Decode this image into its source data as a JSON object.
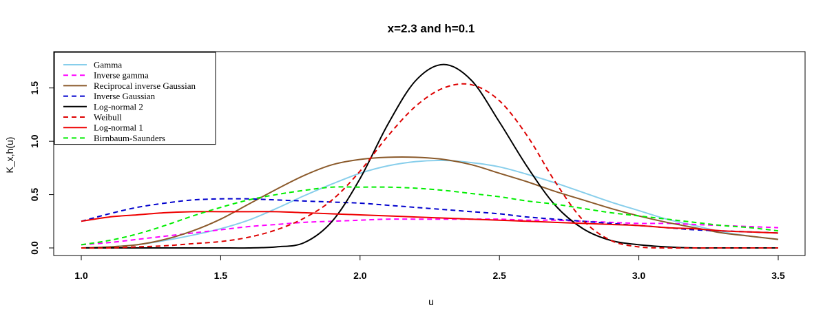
{
  "chart_data": {
    "type": "line",
    "title": "x=2.3 and h=0.1",
    "xlabel": "u",
    "ylabel": "K_x,h(u)",
    "xlim": [
      1.0,
      3.5
    ],
    "ylim": [
      0.0,
      1.75
    ],
    "xticks": [
      1.0,
      1.5,
      2.0,
      2.5,
      3.0,
      3.5
    ],
    "xtick_labels": [
      "1.0",
      "1.5",
      "2.0",
      "2.5",
      "3.0",
      "3.5"
    ],
    "yticks": [
      0.0,
      0.5,
      1.0,
      1.5
    ],
    "ytick_labels": [
      "0.0",
      "0.5",
      "1.0",
      "1.5"
    ],
    "grid": false,
    "legend_position": "top-left",
    "x": [
      1.0,
      1.1,
      1.2,
      1.3,
      1.4,
      1.5,
      1.6,
      1.7,
      1.8,
      1.9,
      2.0,
      2.1,
      2.2,
      2.3,
      2.4,
      2.5,
      2.6,
      2.7,
      2.8,
      2.9,
      3.0,
      3.1,
      3.2,
      3.3,
      3.4,
      3.5
    ],
    "series": [
      {
        "name": "Gamma",
        "color": "#87ceeb",
        "dash": "solid",
        "values": [
          0.0,
          0.01,
          0.03,
          0.07,
          0.12,
          0.18,
          0.26,
          0.37,
          0.49,
          0.6,
          0.7,
          0.77,
          0.81,
          0.82,
          0.8,
          0.76,
          0.69,
          0.61,
          0.52,
          0.43,
          0.35,
          0.27,
          0.21,
          0.15,
          0.11,
          0.08
        ]
      },
      {
        "name": "Inverse gamma",
        "color": "#ff00ff",
        "dash": "dashed",
        "values": [
          0.03,
          0.05,
          0.08,
          0.11,
          0.14,
          0.17,
          0.2,
          0.22,
          0.24,
          0.25,
          0.26,
          0.27,
          0.27,
          0.27,
          0.27,
          0.27,
          0.26,
          0.26,
          0.25,
          0.24,
          0.23,
          0.23,
          0.22,
          0.21,
          0.2,
          0.19
        ]
      },
      {
        "name": "Reciprocal inverse Gaussian",
        "color": "#8b5a2b",
        "dash": "solid",
        "values": [
          0.0,
          0.01,
          0.03,
          0.08,
          0.16,
          0.27,
          0.41,
          0.55,
          0.68,
          0.78,
          0.83,
          0.85,
          0.85,
          0.83,
          0.78,
          0.7,
          0.62,
          0.53,
          0.45,
          0.37,
          0.3,
          0.24,
          0.19,
          0.14,
          0.11,
          0.08
        ]
      },
      {
        "name": "Inverse Gaussian",
        "color": "#0000cd",
        "dash": "dashed",
        "values": [
          0.25,
          0.32,
          0.38,
          0.42,
          0.45,
          0.46,
          0.46,
          0.45,
          0.44,
          0.43,
          0.42,
          0.4,
          0.38,
          0.36,
          0.34,
          0.32,
          0.29,
          0.27,
          0.25,
          0.23,
          0.21,
          0.19,
          0.17,
          0.16,
          0.15,
          0.14
        ]
      },
      {
        "name": "Log-normal 2",
        "color": "#000000",
        "dash": "solid",
        "values": [
          0.0,
          0.0,
          0.0,
          0.0,
          0.0,
          0.0,
          0.0,
          0.01,
          0.05,
          0.25,
          0.65,
          1.16,
          1.57,
          1.72,
          1.57,
          1.18,
          0.76,
          0.4,
          0.18,
          0.07,
          0.03,
          0.01,
          0.0,
          0.0,
          0.0,
          0.0
        ]
      },
      {
        "name": "Weibull",
        "color": "#dd0000",
        "dash": "dashed",
        "values": [
          0.0,
          0.0,
          0.01,
          0.02,
          0.04,
          0.06,
          0.1,
          0.17,
          0.28,
          0.45,
          0.72,
          1.05,
          1.33,
          1.5,
          1.53,
          1.38,
          1.05,
          0.62,
          0.26,
          0.07,
          0.01,
          0.0,
          0.0,
          0.0,
          0.0,
          0.0
        ]
      },
      {
        "name": "Log-normal 1",
        "color": "#ee0000",
        "dash": "solid",
        "values": [
          0.25,
          0.29,
          0.31,
          0.33,
          0.34,
          0.34,
          0.34,
          0.34,
          0.33,
          0.32,
          0.31,
          0.3,
          0.29,
          0.28,
          0.27,
          0.26,
          0.25,
          0.24,
          0.23,
          0.22,
          0.21,
          0.19,
          0.18,
          0.16,
          0.15,
          0.14
        ]
      },
      {
        "name": "Birnbaum-Saunders",
        "color": "#00ee00",
        "dash": "dashed",
        "values": [
          0.03,
          0.07,
          0.13,
          0.21,
          0.3,
          0.38,
          0.45,
          0.5,
          0.54,
          0.57,
          0.57,
          0.57,
          0.56,
          0.54,
          0.51,
          0.48,
          0.44,
          0.41,
          0.37,
          0.33,
          0.3,
          0.27,
          0.24,
          0.21,
          0.19,
          0.16
        ]
      }
    ]
  }
}
